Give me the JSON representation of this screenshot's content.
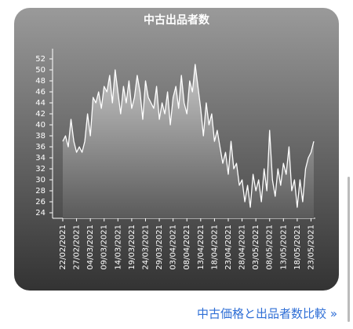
{
  "chart_data": {
    "type": "area",
    "title": "中古出品者数",
    "categories": [
      "22/02/2021",
      null,
      null,
      null,
      null,
      "27/02/2021",
      null,
      null,
      null,
      null,
      "04/03/2021",
      null,
      null,
      null,
      null,
      "09/03/2021",
      null,
      null,
      null,
      null,
      "14/03/2021",
      null,
      null,
      null,
      null,
      "19/03/2021",
      null,
      null,
      null,
      null,
      "24/03/2021",
      null,
      null,
      null,
      null,
      "29/03/2021",
      null,
      null,
      null,
      null,
      "03/04/2021",
      null,
      null,
      null,
      null,
      "08/04/2021",
      null,
      null,
      null,
      null,
      "13/04/2021",
      null,
      null,
      null,
      null,
      "18/04/2021",
      null,
      null,
      null,
      null,
      "23/04/2021",
      null,
      null,
      null,
      null,
      "28/04/2021",
      null,
      null,
      null,
      null,
      "03/05/2021",
      null,
      null,
      null,
      null,
      "08/05/2021",
      null,
      null,
      null,
      null,
      "13/05/2021",
      null,
      null,
      null,
      null,
      "18/05/2021",
      null,
      null,
      null,
      null,
      "23/05/2021",
      null
    ],
    "values": [
      37,
      38,
      36,
      41,
      37,
      35,
      36,
      35,
      37,
      42,
      38,
      45,
      44,
      46,
      43,
      47,
      46,
      49,
      44,
      50,
      46,
      42,
      47,
      44,
      48,
      43,
      45,
      49,
      46,
      41,
      48,
      45,
      44,
      43,
      47,
      41,
      44,
      42,
      46,
      40,
      45,
      47,
      43,
      49,
      44,
      42,
      48,
      46,
      51,
      47,
      43,
      38,
      44,
      40,
      42,
      37,
      39,
      36,
      33,
      35,
      31,
      37,
      32,
      33,
      29,
      30,
      26,
      29,
      25,
      31,
      28,
      30,
      26,
      32,
      28,
      39,
      30,
      27,
      32,
      29,
      33,
      31,
      36,
      28,
      30,
      25,
      30,
      26,
      32,
      34,
      35,
      37
    ],
    "color": "#ffffff",
    "ylim": [
      24,
      52
    ],
    "yticks": [
      24,
      26,
      28,
      30,
      32,
      34,
      36,
      38,
      40,
      42,
      44,
      46,
      48,
      50,
      52
    ]
  },
  "link": "中古価格と出品者数比較 »"
}
